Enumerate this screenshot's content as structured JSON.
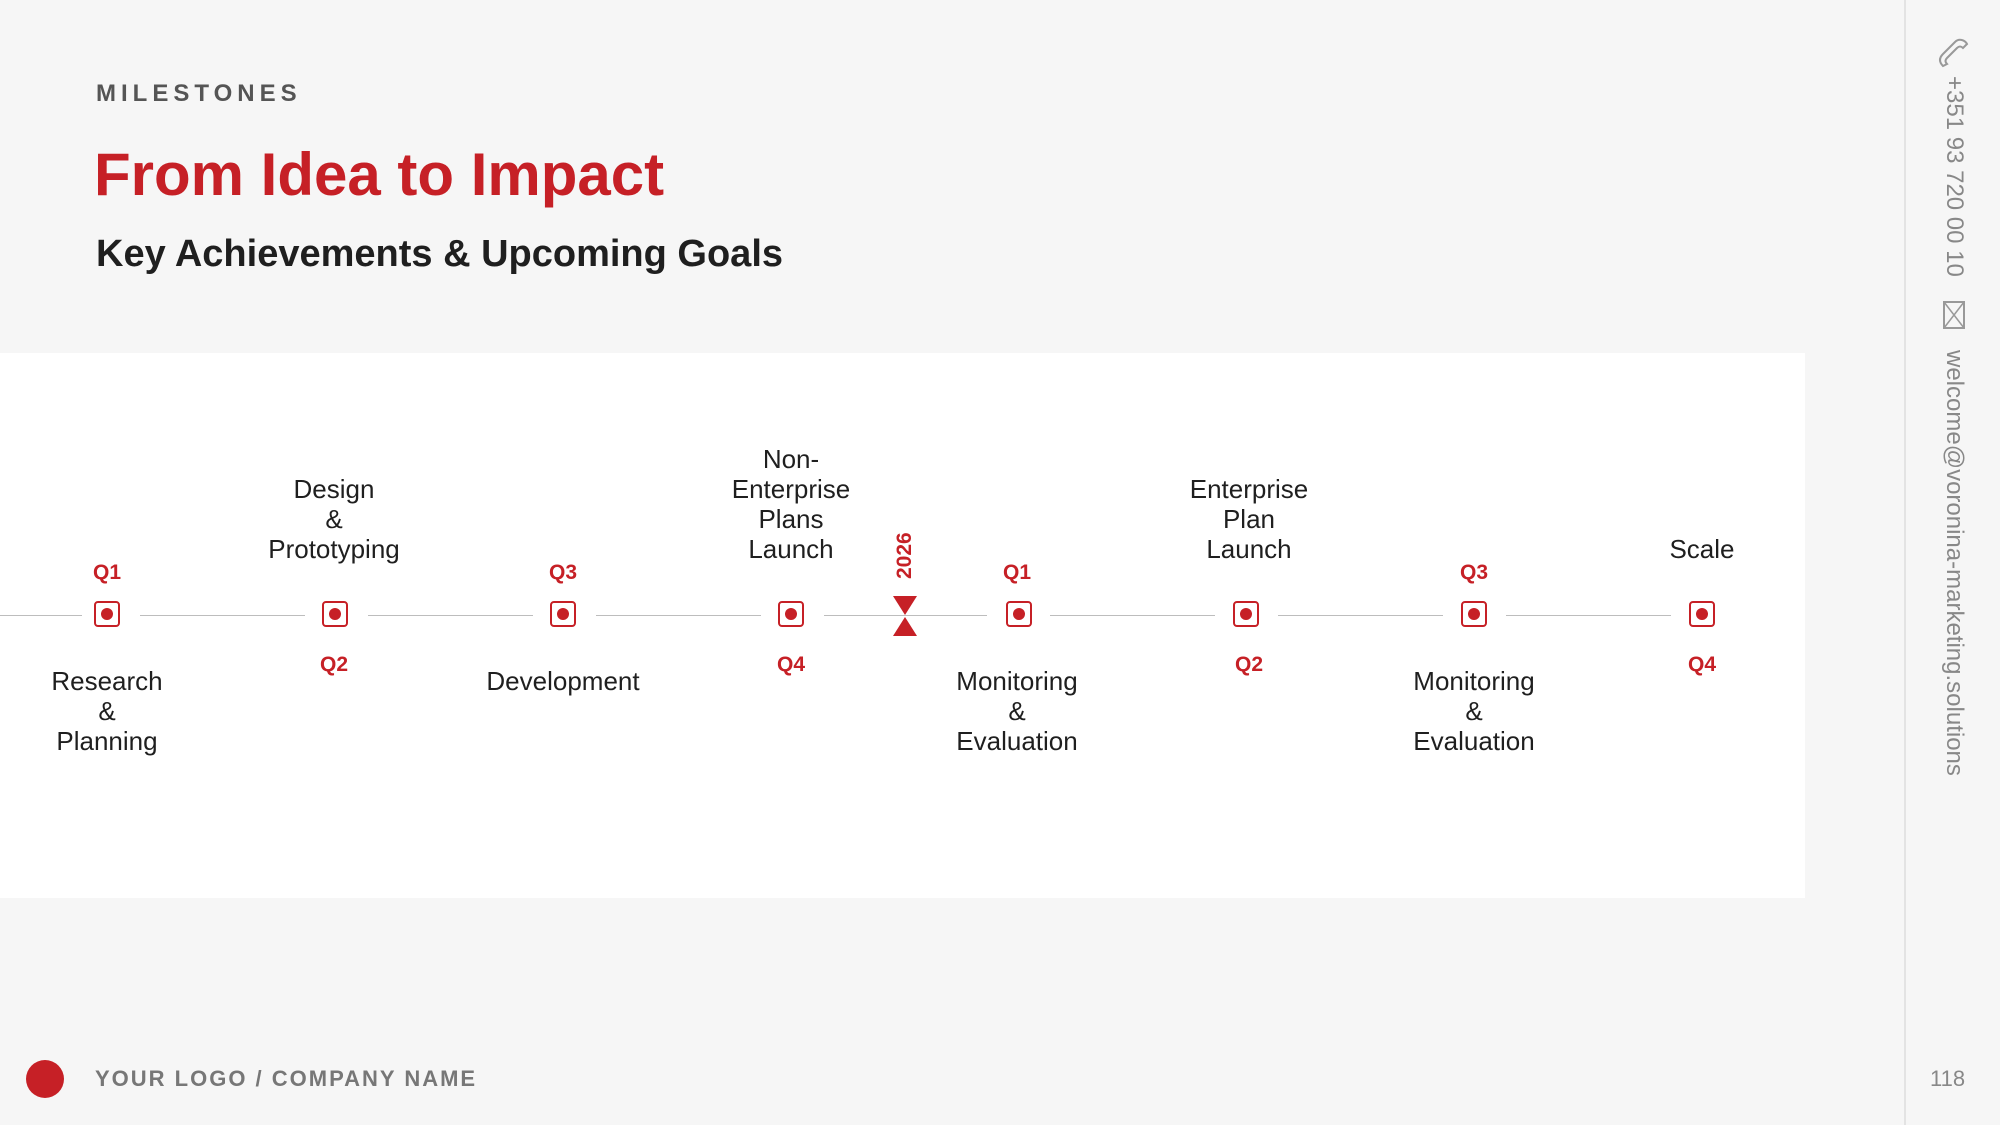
{
  "header": {
    "eyebrow": "MILESTONES",
    "title": "From Idea to Impact",
    "subtitle": "Key Achievements & Upcoming Goals"
  },
  "timeline": {
    "year_marker": "2026",
    "milestones": [
      {
        "quarter": "Q1",
        "label": "Research\n&\nPlanning"
      },
      {
        "quarter": "Q2",
        "label": "Design\n&\nPrototyping"
      },
      {
        "quarter": "Q3",
        "label": "Development"
      },
      {
        "quarter": "Q4",
        "label": "Non-\nEnterprise\nPlans\nLaunch"
      },
      {
        "quarter": "Q1",
        "label": "Monitoring\n&\nEvaluation"
      },
      {
        "quarter": "Q2",
        "label": "Enterprise\nPlan\nLaunch"
      },
      {
        "quarter": "Q3",
        "label": "Monitoring\n&\nEvaluation"
      },
      {
        "quarter": "Q4",
        "label": "Scale"
      }
    ]
  },
  "contact": {
    "phone": "+351 93 720 00 10",
    "email": "welcome@voronina-marketing.solutions"
  },
  "footer": {
    "company": "YOUR LOGO / COMPANY NAME",
    "page_number": "118"
  },
  "colors": {
    "accent": "#c62026",
    "text": "#1f1f1f",
    "muted": "#888888"
  }
}
